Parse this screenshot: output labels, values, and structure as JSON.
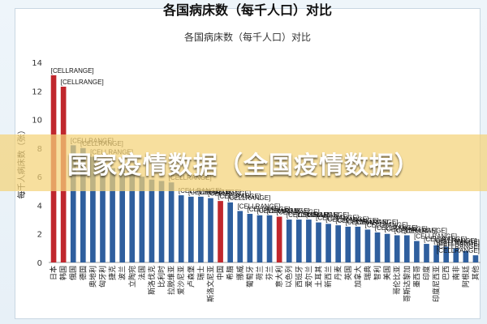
{
  "page": {
    "top_title": "各国病床数（每千人口）对比",
    "banner": "国家疫情数据（全国疫情数据）"
  },
  "colors": {
    "bar": "#2f5f9e",
    "highlight": "#c0272d",
    "banner": "#f4d278"
  },
  "chart_data": {
    "type": "bar",
    "title": "各国病床数（每千人口）对比",
    "ylabel": "每千人病床数（张）",
    "xlabel": "",
    "ylim": [
      0,
      14
    ],
    "yticks": [
      0,
      2,
      4,
      6,
      8,
      10,
      12,
      14
    ],
    "grid": false,
    "data_label": "[CELLRANGE]",
    "labeled_bars": [
      0,
      1,
      2,
      3,
      4,
      12,
      13,
      14,
      15,
      16,
      17,
      18,
      19,
      20,
      21,
      22,
      23,
      24,
      25,
      26,
      27,
      28,
      29,
      30,
      31,
      32,
      33,
      34,
      35,
      36,
      37,
      38,
      39,
      40,
      41,
      42,
      43
    ],
    "categories": [
      "日本",
      "韩国",
      "俄国",
      "德国",
      "奥地利",
      "匈牙利",
      "捷克",
      "波兰",
      "立陶宛",
      "法国",
      "斯洛伐克",
      "比利时",
      "拉脱维亚",
      "爱沙尼亚",
      "卢森堡",
      "瑞士",
      "斯洛文尼亚",
      "中国",
      "希腊",
      "挪威",
      "葡萄牙",
      "荷兰",
      "芬兰",
      "意大利",
      "以色列",
      "西班牙",
      "爱尔兰",
      "土耳其",
      "新西兰",
      "丹麦",
      "英国",
      "加拿大",
      "瑞典",
      "智利",
      "美国",
      "哥伦比亚",
      "哥斯达黎加",
      "墨西哥",
      "印度",
      "印度尼西亚",
      "巴西",
      "南非",
      "阿根廷",
      "其他"
    ],
    "values": [
      13.1,
      12.3,
      8.2,
      8.0,
      7.4,
      7.0,
      6.6,
      6.6,
      6.5,
      6.0,
      5.8,
      5.7,
      5.6,
      4.7,
      4.6,
      4.6,
      4.5,
      4.3,
      4.2,
      3.6,
      3.4,
      3.3,
      3.3,
      3.2,
      3.0,
      3.0,
      3.0,
      2.8,
      2.7,
      2.6,
      2.5,
      2.5,
      2.3,
      2.1,
      2.0,
      1.9,
      1.9,
      1.5,
      1.3,
      1.2,
      1.1,
      1.0,
      0.8,
      0.5
    ],
    "highlight": [
      "日本",
      "韩国",
      "中国",
      "意大利"
    ]
  }
}
